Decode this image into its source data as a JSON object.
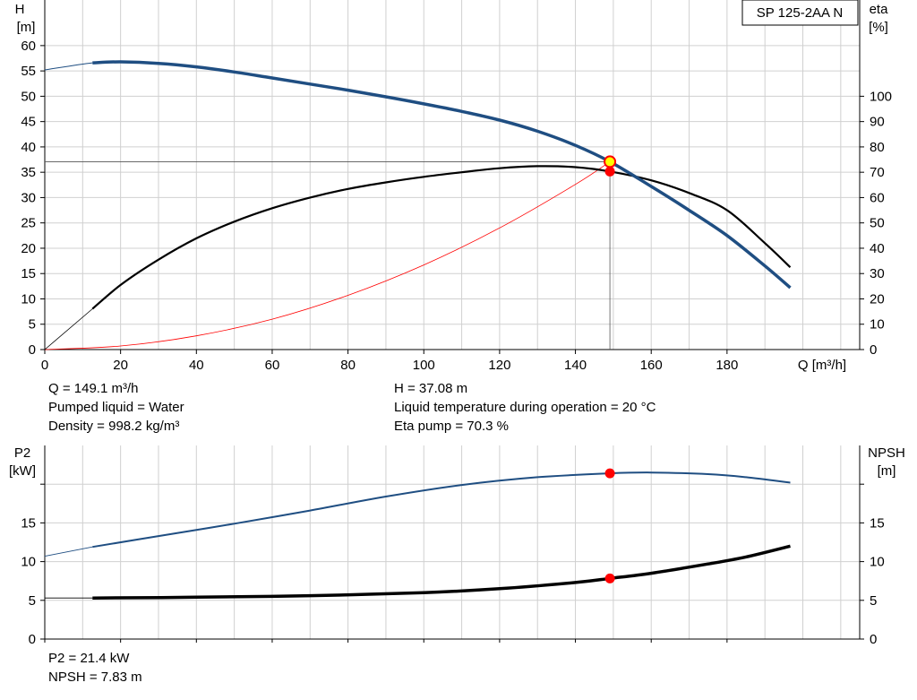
{
  "model": "SP 125-2AA N",
  "operating_point": {
    "q_text": "Q = 149.1 m³/h",
    "h_text": "H = 37.08 m",
    "liquid_text": "Pumped liquid = Water",
    "temperature_text": "Liquid temperature during operation = 20 °C",
    "density_text": "Density = 998.2 kg/m³",
    "eta_text": "Eta pump = 70.3 %",
    "p2_text": "P2 = 21.4 kW",
    "npsh_text": "NPSH = 7.83 m"
  },
  "colors": {
    "head": "#1f4e82",
    "eta": "#000000",
    "system": "#ff0000",
    "p2": "#1f4e82",
    "npsh": "#000000",
    "marker": "#ff0000",
    "marker_yellow": "#ffff00",
    "grid": "#d0d0d0"
  },
  "chart_data": [
    {
      "type": "line",
      "x_label_left": "Q [m³/h]",
      "y_label_left": "H\n[m]",
      "y_label_right": "eta\n[%]",
      "xlim": [
        0,
        215
      ],
      "ylim_left": [
        0,
        69
      ],
      "ylim_right": [
        0,
        138
      ],
      "x_ticks": [
        0,
        20,
        40,
        60,
        80,
        100,
        120,
        140,
        160,
        180
      ],
      "y_ticks_left": [
        0,
        5,
        10,
        15,
        20,
        25,
        30,
        35,
        40,
        45,
        50,
        55,
        60
      ],
      "y_ticks_right": [
        0,
        10,
        20,
        30,
        40,
        50,
        60,
        70,
        80,
        90,
        100
      ],
      "grid": true,
      "series": [
        {
          "name": "H",
          "axis": "left",
          "x": [
            0,
            12.6,
            20,
            30,
            40,
            50,
            60,
            70,
            80,
            90,
            100,
            110,
            120,
            130,
            140,
            149.1,
            160,
            170,
            180,
            190,
            196.7
          ],
          "y": [
            55.2,
            56.6,
            56.8,
            56.5,
            55.8,
            54.8,
            53.6,
            52.4,
            51.2,
            49.9,
            48.5,
            47.0,
            45.3,
            43.1,
            40.3,
            37.08,
            32.2,
            27.5,
            22.5,
            16.5,
            12.2
          ]
        },
        {
          "name": "eta",
          "axis": "right",
          "x": [
            12.6,
            20,
            30,
            40,
            50,
            60,
            70,
            80,
            90,
            100,
            110,
            120,
            130,
            140,
            149.1,
            160,
            170,
            180,
            190,
            196.7
          ],
          "y": [
            16.1,
            25.5,
            35.5,
            43.9,
            50.5,
            55.8,
            60.0,
            63.4,
            66.0,
            68.2,
            70.0,
            71.6,
            72.4,
            72.0,
            70.3,
            66.8,
            61.8,
            55.0,
            42.0,
            32.5
          ]
        },
        {
          "name": "system",
          "axis": "left",
          "x": [
            0,
            20,
            40,
            60,
            80,
            100,
            120,
            140,
            149.1
          ],
          "y": [
            0,
            0.7,
            2.7,
            6.0,
            10.7,
            16.7,
            24.0,
            32.6,
            37.08
          ]
        }
      ],
      "operating_point": {
        "q": 149.1,
        "h": 37.08,
        "eta": 70.3
      }
    },
    {
      "type": "line",
      "y_label_left": "P2\n[kW]",
      "y_label_right": "NPSH\n[m]",
      "xlim": [
        0,
        215
      ],
      "ylim_left": [
        0,
        25
      ],
      "ylim_right": [
        0,
        25
      ],
      "y_ticks_left": [
        0,
        5,
        10,
        15
      ],
      "y_ticks_right": [
        0,
        5,
        10,
        15
      ],
      "grid": true,
      "series": [
        {
          "name": "P2",
          "axis": "left",
          "x": [
            0,
            12.6,
            30,
            50,
            70,
            90,
            110,
            130,
            149.1,
            160,
            175,
            185,
            196.7
          ],
          "y": [
            10.7,
            11.9,
            13.3,
            14.9,
            16.6,
            18.4,
            19.9,
            20.9,
            21.4,
            21.5,
            21.3,
            20.9,
            20.2
          ]
        },
        {
          "name": "NPSH",
          "axis": "right",
          "x": [
            0,
            12.6,
            40,
            70,
            100,
            120,
            140,
            149.1,
            160,
            175,
            185,
            196.7
          ],
          "y": [
            5.3,
            5.3,
            5.4,
            5.6,
            6.0,
            6.5,
            7.3,
            7.83,
            8.5,
            9.7,
            10.6,
            12.0
          ]
        }
      ],
      "operating_point": {
        "q": 149.1,
        "p2": 21.4,
        "npsh": 7.83
      }
    }
  ]
}
